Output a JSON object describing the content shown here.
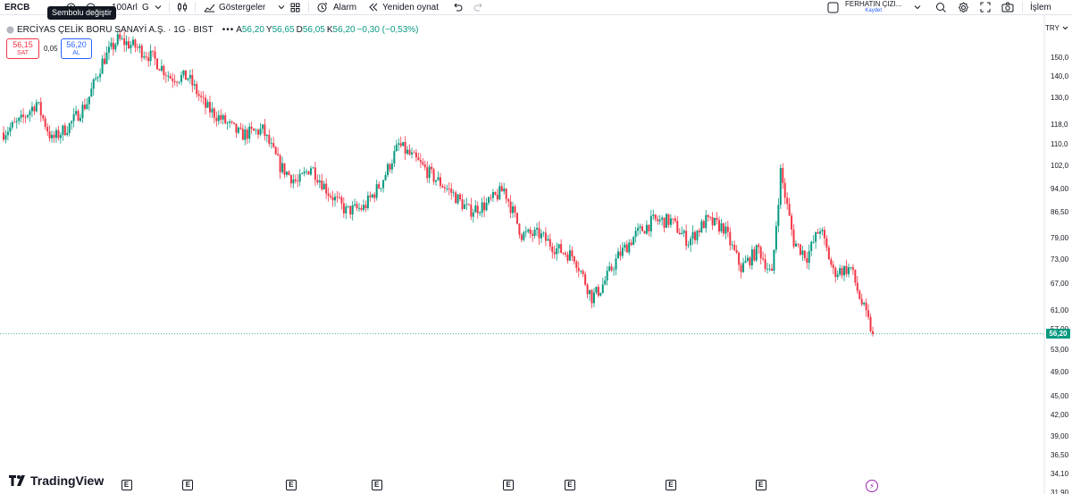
{
  "toolbar": {
    "symbol": "ERCB",
    "tooltip": "Sembolu değiştir",
    "interval": "100Arl",
    "interval_g": "G",
    "indicators_label": "Göstergeler",
    "alert_label": "Alarm",
    "replay_label": "Yeniden oynat",
    "user_name": "FERHATIN ÇIZI...",
    "user_sub": "Kaydet",
    "trade_label": "İşlem"
  },
  "legend": {
    "title": "ERCİYAS ÇELİK BORU SANAYİ A.Ş. · 1G · BIST",
    "more": "•••",
    "o_label": "A",
    "o_value": "56,20",
    "h_label": "Y",
    "h_value": "56,65",
    "l_label": "D",
    "l_value": "56,05",
    "c_label": "K",
    "c_value": "56,20",
    "change": "−0,30 (−0,53%)"
  },
  "trade": {
    "sell_price": "56,15",
    "sell_label": "SAT",
    "spread": "0,05",
    "buy_price": "56,20",
    "buy_label": "AL"
  },
  "axis": {
    "currency": "TRY",
    "ticks": [
      "150,0",
      "140,0",
      "130,0",
      "118,0",
      "110,0",
      "102,0",
      "94,00",
      "86,50",
      "79,00",
      "73,00",
      "67,00",
      "61,00",
      "57,00",
      "53,00",
      "49,00",
      "45,00",
      "42,00",
      "39,00",
      "36,50",
      "34,10",
      "31,90"
    ],
    "last_price": "56,20"
  },
  "branding": {
    "text": "TradingView"
  },
  "events": {
    "earnings_label": "E",
    "earnings_count": 8
  },
  "colors": {
    "up": "#089981",
    "down": "#f23645",
    "accent": "#2962ff"
  },
  "chart_data": {
    "type": "candlestick",
    "symbol": "ERCB",
    "interval": "1G",
    "price_scale": "log",
    "ylim": [
      31.9,
      168
    ],
    "last_price": 56.2,
    "key_points": [
      {
        "i": 0,
        "p": 115
      },
      {
        "i": 8,
        "p": 120
      },
      {
        "i": 15,
        "p": 128
      },
      {
        "i": 22,
        "p": 112
      },
      {
        "i": 30,
        "p": 118
      },
      {
        "i": 38,
        "p": 128
      },
      {
        "i": 45,
        "p": 148
      },
      {
        "i": 52,
        "p": 160
      },
      {
        "i": 60,
        "p": 156
      },
      {
        "i": 68,
        "p": 150
      },
      {
        "i": 76,
        "p": 140
      },
      {
        "i": 84,
        "p": 140
      },
      {
        "i": 92,
        "p": 126
      },
      {
        "i": 100,
        "p": 120
      },
      {
        "i": 108,
        "p": 114
      },
      {
        "i": 118,
        "p": 116
      },
      {
        "i": 126,
        "p": 102
      },
      {
        "i": 134,
        "p": 96
      },
      {
        "i": 140,
        "p": 102
      },
      {
        "i": 148,
        "p": 93
      },
      {
        "i": 156,
        "p": 87
      },
      {
        "i": 164,
        "p": 88
      },
      {
        "i": 172,
        "p": 96
      },
      {
        "i": 180,
        "p": 110
      },
      {
        "i": 188,
        "p": 104
      },
      {
        "i": 196,
        "p": 98
      },
      {
        "i": 204,
        "p": 93
      },
      {
        "i": 212,
        "p": 87
      },
      {
        "i": 220,
        "p": 89
      },
      {
        "i": 228,
        "p": 94
      },
      {
        "i": 236,
        "p": 80
      },
      {
        "i": 244,
        "p": 80
      },
      {
        "i": 252,
        "p": 76
      },
      {
        "i": 260,
        "p": 74
      },
      {
        "i": 268,
        "p": 64
      },
      {
        "i": 272,
        "p": 66
      },
      {
        "i": 280,
        "p": 74
      },
      {
        "i": 288,
        "p": 80
      },
      {
        "i": 296,
        "p": 84
      },
      {
        "i": 304,
        "p": 84
      },
      {
        "i": 312,
        "p": 78
      },
      {
        "i": 320,
        "p": 84
      },
      {
        "i": 328,
        "p": 82
      },
      {
        "i": 336,
        "p": 71
      },
      {
        "i": 344,
        "p": 76
      },
      {
        "i": 350,
        "p": 69
      },
      {
        "i": 354,
        "p": 100
      },
      {
        "i": 360,
        "p": 78
      },
      {
        "i": 366,
        "p": 74
      },
      {
        "i": 372,
        "p": 82
      },
      {
        "i": 378,
        "p": 70
      },
      {
        "i": 386,
        "p": 71
      },
      {
        "i": 390,
        "p": 64
      },
      {
        "i": 396,
        "p": 56.2
      }
    ],
    "earnings_markers_bar_index": [
      56,
      84,
      131,
      170,
      230,
      258,
      304,
      345
    ]
  }
}
